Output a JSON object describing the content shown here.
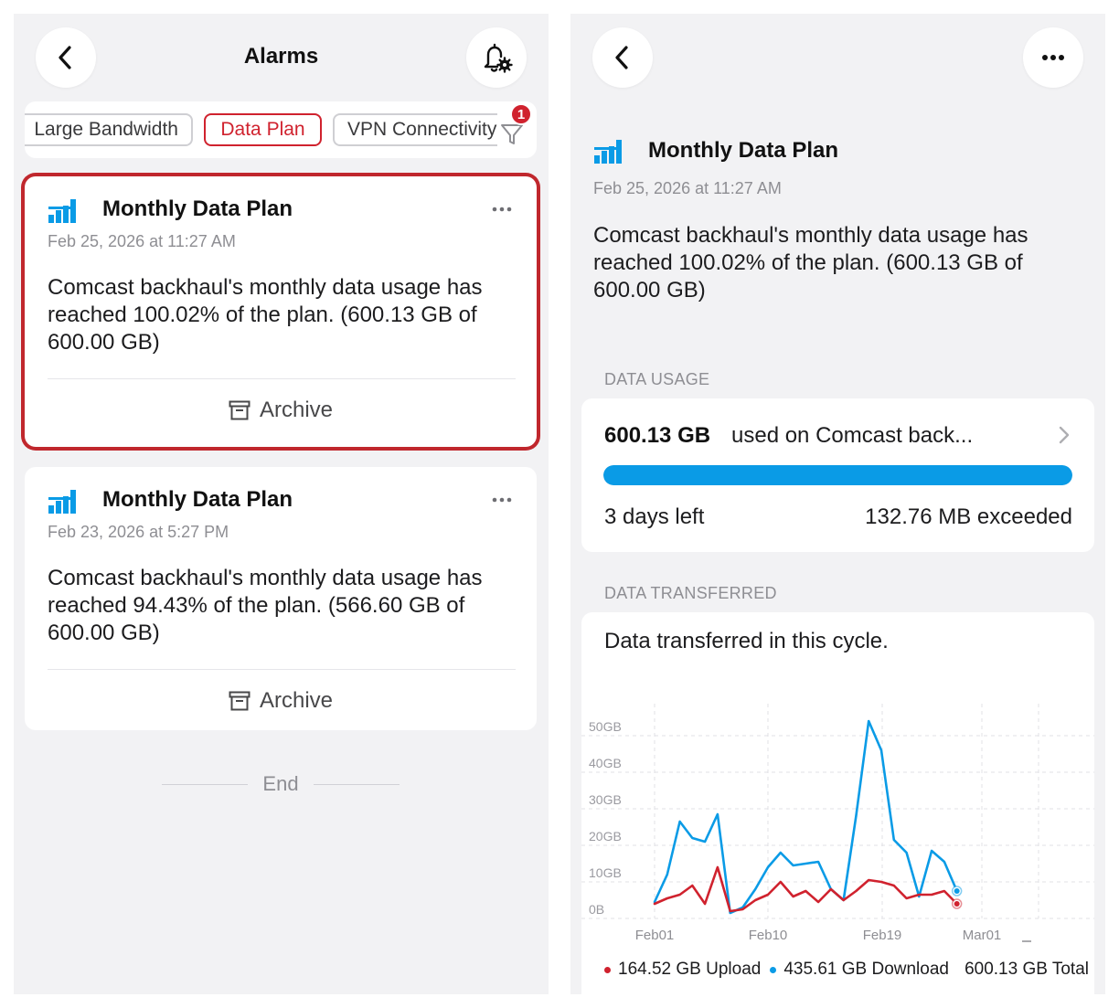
{
  "alarms_screen": {
    "title": "Alarms",
    "filter_chips": [
      {
        "label": "Large Bandwidth",
        "active": false
      },
      {
        "label": "Data Plan",
        "active": true
      },
      {
        "label": "VPN Connectivity",
        "active": false
      }
    ],
    "filter_badge_count": "1",
    "alarms": [
      {
        "title": "Monthly Data Plan",
        "time": "Feb 25, 2026 at 11:27 AM",
        "message": "Comcast backhaul's monthly data usage has reached 100.02% of the plan. (600.13 GB of 600.00 GB)",
        "archive_label": "Archive",
        "selected": true
      },
      {
        "title": "Monthly Data Plan",
        "time": "Feb 23, 2026 at 5:27 PM",
        "message": "Comcast backhaul's monthly data usage has reached 94.43% of the plan. (566.60 GB of 600.00 GB)",
        "archive_label": "Archive",
        "selected": false
      }
    ],
    "end_label": "End"
  },
  "detail_screen": {
    "title": "Monthly Data Plan",
    "time": "Feb 25, 2026 at 11:27 AM",
    "message": "Comcast backhaul's monthly data usage has reached 100.02% of the plan. (600.13 GB of 600.00 GB)",
    "data_usage": {
      "section_label": "DATA USAGE",
      "amount": "600.13 GB",
      "description": "used on Comcast back...",
      "progress": 1.0,
      "days_left": "3 days left",
      "exceeded": "132.76 MB exceeded"
    },
    "data_transferred": {
      "section_label": "DATA TRANSFERRED",
      "heading": "Data transferred in this cycle.",
      "legend": {
        "upload": "164.52 GB Upload",
        "download": "435.61 GB Download",
        "total": "600.13 GB Total"
      }
    }
  },
  "colors": {
    "accent_red": "#d0222e",
    "selected_border": "#c0272d",
    "download_blue": "#0a9be6",
    "upload_red": "#d0222e",
    "icon_blue": "#0a9be6"
  },
  "icons": {
    "back": "chevron-left-icon",
    "alarm_settings": "bell-gear-icon",
    "filter": "filter-funnel-icon",
    "more": "ellipsis-icon",
    "archive": "archive-box-icon",
    "data_plan": "bar-chart-icon",
    "chevron": "chevron-right-icon"
  },
  "chart_data": {
    "type": "line",
    "x_tick_labels": [
      "Feb01",
      "Feb10",
      "Feb19",
      "Mar01"
    ],
    "y_tick_labels": [
      "0B",
      "10GB",
      "20GB",
      "30GB",
      "40GB",
      "50GB"
    ],
    "ylim": [
      0,
      55
    ],
    "grid": true,
    "legend_position": "bottom",
    "x": [
      "Feb01",
      "Feb02",
      "Feb03",
      "Feb04",
      "Feb05",
      "Feb06",
      "Feb07",
      "Feb08",
      "Feb09",
      "Feb10",
      "Feb11",
      "Feb12",
      "Feb13",
      "Feb14",
      "Feb15",
      "Feb16",
      "Feb17",
      "Feb18",
      "Feb19",
      "Feb20",
      "Feb21",
      "Feb22",
      "Feb23",
      "Feb24",
      "Feb25"
    ],
    "series": [
      {
        "name": "Upload",
        "color": "#d0222e",
        "values": [
          4,
          5.5,
          6.5,
          9,
          4,
          14,
          2,
          2.5,
          5,
          6.5,
          10,
          6,
          7.5,
          4.5,
          8,
          5,
          7.5,
          10.5,
          10,
          9,
          5.5,
          6.5,
          6.5,
          7.5,
          4
        ]
      },
      {
        "name": "Download",
        "color": "#0a9be6",
        "values": [
          4.5,
          12,
          26.5,
          22,
          21,
          28.5,
          1.5,
          3,
          8,
          14,
          18,
          14.5,
          15,
          15.5,
          8,
          5,
          28,
          54,
          46,
          21.5,
          18,
          6,
          18.5,
          15.5,
          7.5
        ]
      }
    ]
  }
}
